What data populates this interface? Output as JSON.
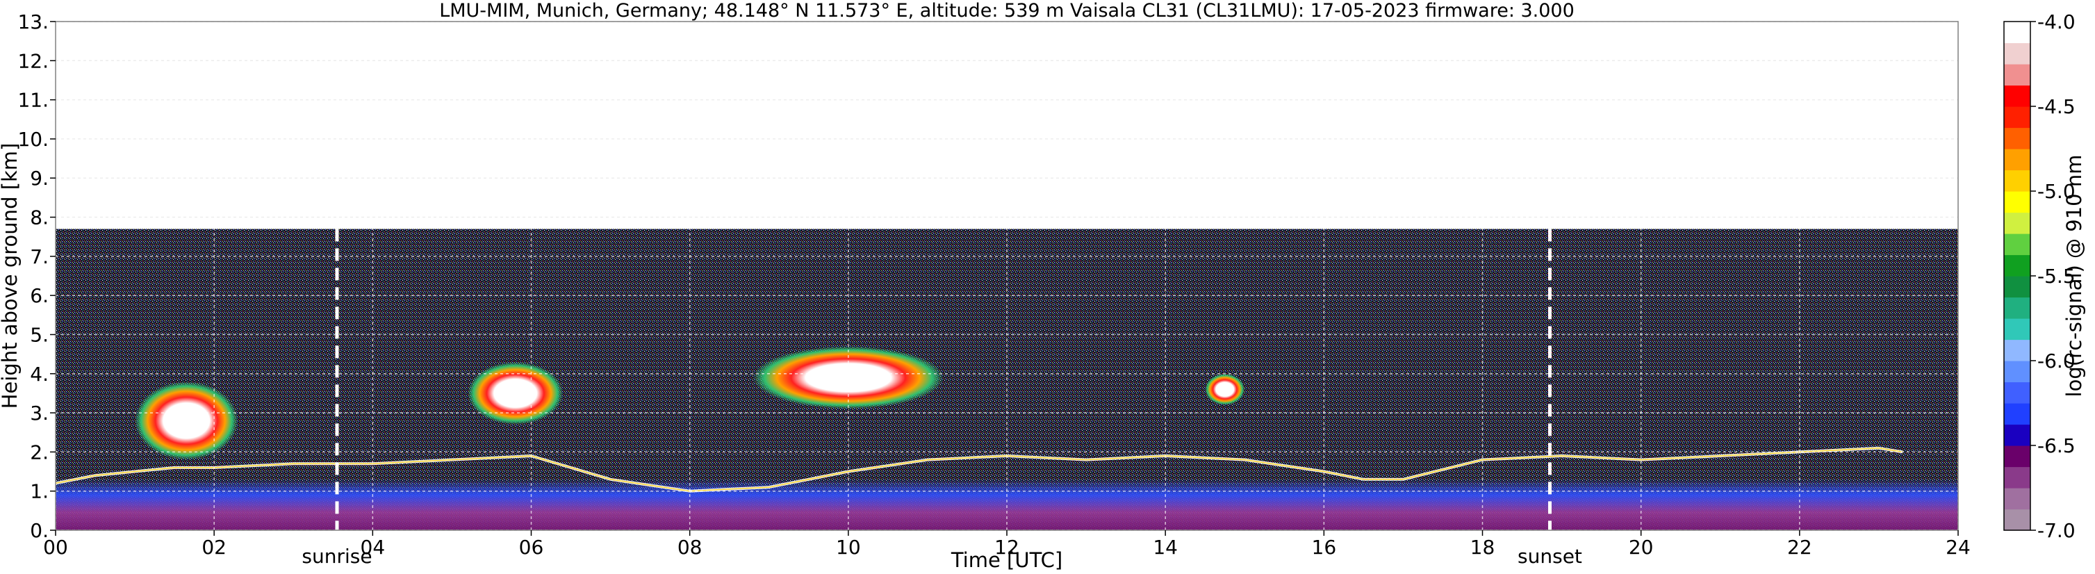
{
  "chart_data": {
    "type": "heatmap",
    "title": "LMU-MIM, Munich, Germany; 48.148° N 11.573° E, altitude: 539 m    Vaisala CL31 (CL31LMU): 17-05-2023    firmware: 3.000",
    "xlabel": "Time [UTC]",
    "ylabel": "Height above ground [km]",
    "xlim": [
      0,
      24
    ],
    "ylim": [
      0,
      13
    ],
    "x_ticks": [
      0,
      2,
      4,
      6,
      8,
      10,
      12,
      14,
      16,
      18,
      20,
      22,
      24
    ],
    "x_tick_labels": [
      "00",
      "02",
      "04",
      "06",
      "08",
      "10",
      "12",
      "14",
      "16",
      "18",
      "20",
      "22",
      "24"
    ],
    "y_ticks": [
      0,
      1,
      2,
      3,
      4,
      5,
      6,
      7,
      8,
      9,
      10,
      11,
      12,
      13
    ],
    "y_tick_labels": [
      "0.",
      "1.",
      "2.",
      "3.",
      "4.",
      "5.",
      "6.",
      "7.",
      "8.",
      "9.",
      "10.",
      "11.",
      "12.",
      "13."
    ],
    "grid": true,
    "max_range_km": 7.7,
    "events": [
      {
        "label": "sunrise",
        "x": 3.55
      },
      {
        "label": "sunset",
        "x": 18.85
      }
    ],
    "colorbar": {
      "label": "log(rc-signal) @ 910 nm",
      "min": -7.0,
      "max": -4.0,
      "ticks": [
        -7.0,
        -6.5,
        -6.0,
        -5.5,
        -5.0,
        -4.5,
        -4.0
      ],
      "tick_labels": [
        "-7.0",
        "-6.5",
        "-6.0",
        "-5.5",
        "-5.0",
        "-4.5",
        "-4.0"
      ],
      "colors": [
        "#a890a8",
        "#a070a0",
        "#8a3a8a",
        "#6a006a",
        "#1a00c0",
        "#2040ff",
        "#4060ff",
        "#6090ff",
        "#90b8ff",
        "#30c8b8",
        "#20b080",
        "#109040",
        "#10a020",
        "#60d040",
        "#d0f040",
        "#ffff00",
        "#ffd000",
        "#ffa000",
        "#ff6000",
        "#ff2000",
        "#ff0000",
        "#f09090",
        "#f0d0d0",
        "#ffffff"
      ]
    },
    "features": [
      {
        "kind": "boundary-layer-top",
        "t": [
          0,
          0.5,
          1,
          1.5,
          2,
          3,
          4,
          5,
          6,
          7,
          8,
          9,
          10,
          11,
          12,
          13,
          14,
          15,
          16,
          16.5,
          17,
          18,
          19,
          20,
          21,
          22,
          23,
          23.3
        ],
        "h_km": [
          1.2,
          1.4,
          1.5,
          1.6,
          1.6,
          1.7,
          1.7,
          1.8,
          1.9,
          1.3,
          1.0,
          1.1,
          1.5,
          1.8,
          1.9,
          1.8,
          1.9,
          1.8,
          1.5,
          1.3,
          1.3,
          1.8,
          1.9,
          1.8,
          1.9,
          2.0,
          2.1,
          2.0
        ]
      },
      {
        "kind": "cloud",
        "t": [
          1.0,
          2.3
        ],
        "h_km": [
          1.8,
          3.8
        ]
      },
      {
        "kind": "cloud",
        "t": [
          5.2,
          6.4
        ],
        "h_km": [
          2.7,
          4.3
        ]
      },
      {
        "kind": "cloud",
        "t": [
          8.8,
          11.2
        ],
        "h_km": [
          3.1,
          4.7
        ]
      },
      {
        "kind": "cloud",
        "t": [
          14.5,
          15.0
        ],
        "h_km": [
          3.2,
          4.0
        ]
      }
    ]
  }
}
